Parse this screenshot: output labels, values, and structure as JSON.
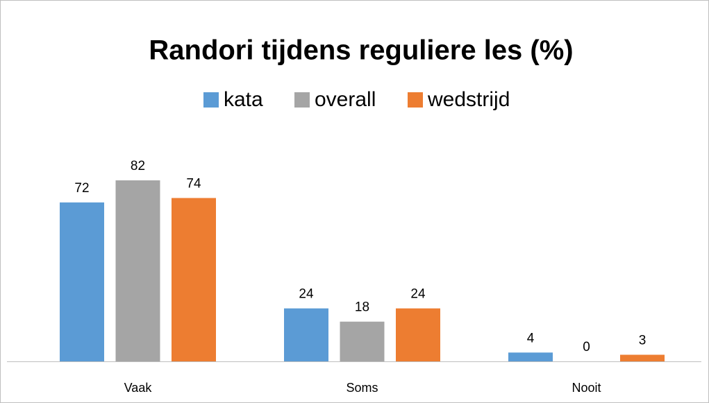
{
  "chart_data": {
    "type": "bar",
    "title": "Randori tijdens reguliere les (%)",
    "categories": [
      "Vaak",
      "Soms",
      "Nooit"
    ],
    "series": [
      {
        "name": "kata",
        "color": "#5b9bd5",
        "values": [
          72,
          24,
          4
        ]
      },
      {
        "name": "overall",
        "color": "#a5a5a5",
        "values": [
          82,
          18,
          0
        ]
      },
      {
        "name": "wedstrijd",
        "color": "#ed7d31",
        "values": [
          74,
          24,
          3
        ]
      }
    ],
    "legend": "top",
    "grid": false
  }
}
